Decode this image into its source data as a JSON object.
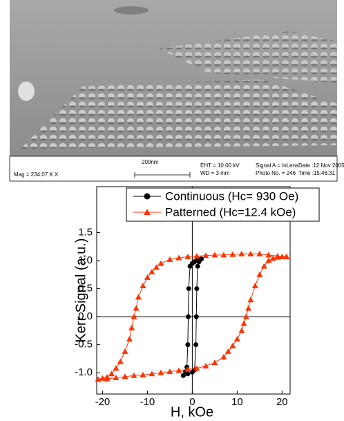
{
  "image_info": {
    "mag": "Mag = 234.07 K X",
    "scale": "200nm",
    "eht": "EHT = 10.00 kV",
    "wd": "WD =  3 mm",
    "signal": "Signal A = InLens",
    "photo": "Photo No. = 246",
    "date": "Date :12 Nov 2005",
    "time": "Time :15:46:31"
  },
  "chart_data": {
    "type": "line",
    "x_label": "H, kOe",
    "y_label": "Kerr Signal (a.u.)",
    "xlim": [
      -21.3,
      21.8
    ],
    "ylim": [
      -1.38,
      2.32
    ],
    "xticks": [
      -20,
      -10,
      0,
      10,
      20
    ],
    "yticks": [
      {
        "value": -1.0,
        "label": "-1.0"
      },
      -0.5,
      {
        "value": 0.0,
        "label": "0.0"
      },
      0.5,
      {
        "value": 1.0,
        "label": "1.0"
      },
      1.5
    ],
    "legend": "upper right",
    "series": [
      {
        "name": "Continuous (Hc= 930 Oe)",
        "color": "#000000",
        "marker": "circle",
        "x": [
          2,
          1.5,
          1,
          0.5,
          0,
          -0.5,
          -0.8,
          -0.9,
          -1,
          -1.2,
          -1.5,
          -2,
          -1,
          0,
          0.5,
          0.8,
          0.9,
          1,
          1.2,
          1.5,
          2
        ],
        "y": [
          1.03,
          1.02,
          1.0,
          0.98,
          0.95,
          0.9,
          0.5,
          0.0,
          -0.5,
          -0.9,
          -0.98,
          -1.05,
          -1.02,
          -0.99,
          -0.95,
          -0.5,
          0.0,
          0.5,
          0.9,
          0.98,
          1.03
        ]
      },
      {
        "name": "Patterned (Hc=12.4 kOe)",
        "color": "#ff3300",
        "marker": "triangle",
        "x": [
          21,
          19,
          17,
          15,
          13,
          11,
          9,
          7,
          5,
          3,
          1,
          -1,
          -3,
          -5,
          -7,
          -8,
          -9,
          -10,
          -11,
          -12,
          -12.5,
          -13,
          -13.5,
          -14,
          -15,
          -16,
          -17,
          -18,
          -19,
          -20,
          -21,
          -19,
          -17,
          -15,
          -13,
          -11,
          -9,
          -7,
          -5,
          -3,
          -1,
          1,
          3,
          5,
          7,
          8,
          9,
          10,
          11,
          11.5,
          12,
          12.5,
          13,
          14,
          15,
          16,
          17,
          18,
          19,
          20,
          21
        ],
        "y": [
          1.07,
          1.08,
          1.1,
          1.12,
          1.12,
          1.12,
          1.11,
          1.1,
          1.1,
          1.09,
          1.08,
          1.07,
          1.05,
          1.02,
          0.95,
          0.88,
          0.8,
          0.7,
          0.55,
          0.35,
          0.15,
          0.0,
          -0.2,
          -0.4,
          -0.62,
          -0.8,
          -0.92,
          -1.02,
          -1.08,
          -1.1,
          -1.12,
          -1.11,
          -1.09,
          -1.07,
          -1.05,
          -1.04,
          -1.02,
          -1.0,
          -0.98,
          -0.96,
          -0.94,
          -0.92,
          -0.88,
          -0.82,
          -0.72,
          -0.62,
          -0.52,
          -0.4,
          -0.25,
          -0.12,
          0.0,
          0.15,
          0.3,
          0.55,
          0.75,
          0.9,
          1.0,
          1.04,
          1.06,
          1.07,
          1.07
        ]
      }
    ]
  }
}
